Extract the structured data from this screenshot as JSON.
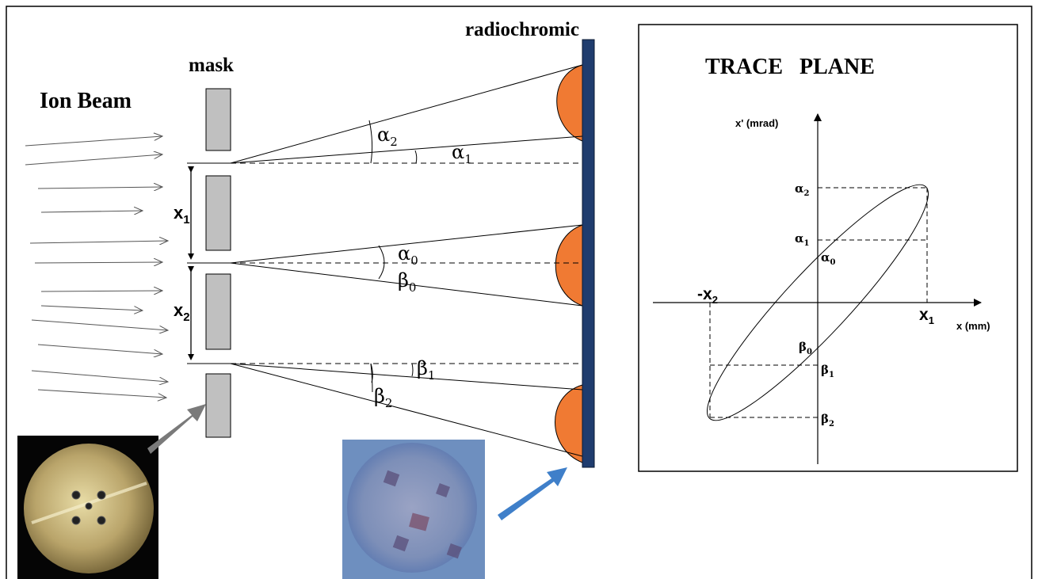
{
  "labels": {
    "ion_beam": "Ion Beam",
    "mask": "mask",
    "radiochromic": "radiochromic",
    "trace_plane": "TRACE   PLANE"
  },
  "left": {
    "x1_base": "x",
    "x1_sub": "1",
    "x2_base": "x",
    "x2_sub": "2",
    "alpha2_base": "α",
    "alpha2_sub": "2",
    "alpha1_base": "α",
    "alpha1_sub": "1",
    "alpha0_base": "α",
    "alpha0_sub": "0",
    "beta0_base": "β",
    "beta0_sub": "0",
    "beta1_base": "β",
    "beta1_sub": "1",
    "beta2_base": "β",
    "beta2_sub": "2"
  },
  "trace": {
    "y_axis": "x' (mrad)",
    "x_axis": "x (mm)",
    "alpha2_base": "α",
    "alpha2_sub": "2",
    "alpha1_base": "α",
    "alpha1_sub": "1",
    "alpha0_base": "α",
    "alpha0_sub": "0",
    "beta0_base": "β",
    "beta0_sub": "0",
    "beta1_base": "β",
    "beta1_sub": "1",
    "beta2_base": "β",
    "beta2_sub": "2",
    "x1_base": "x",
    "x1_sub": "1",
    "negx2_base": "-x",
    "negx2_sub": "2"
  },
  "colors": {
    "mask_fill": "#c0c0c0",
    "spot_fill": "#f07a33",
    "detector_fill": "#1f3c6e",
    "arrow_gray": "#7a7a7a",
    "arrow_blue": "#3f7fc9",
    "disc_brass": "#b9a46a",
    "film_blue": "#6e8fbf"
  }
}
